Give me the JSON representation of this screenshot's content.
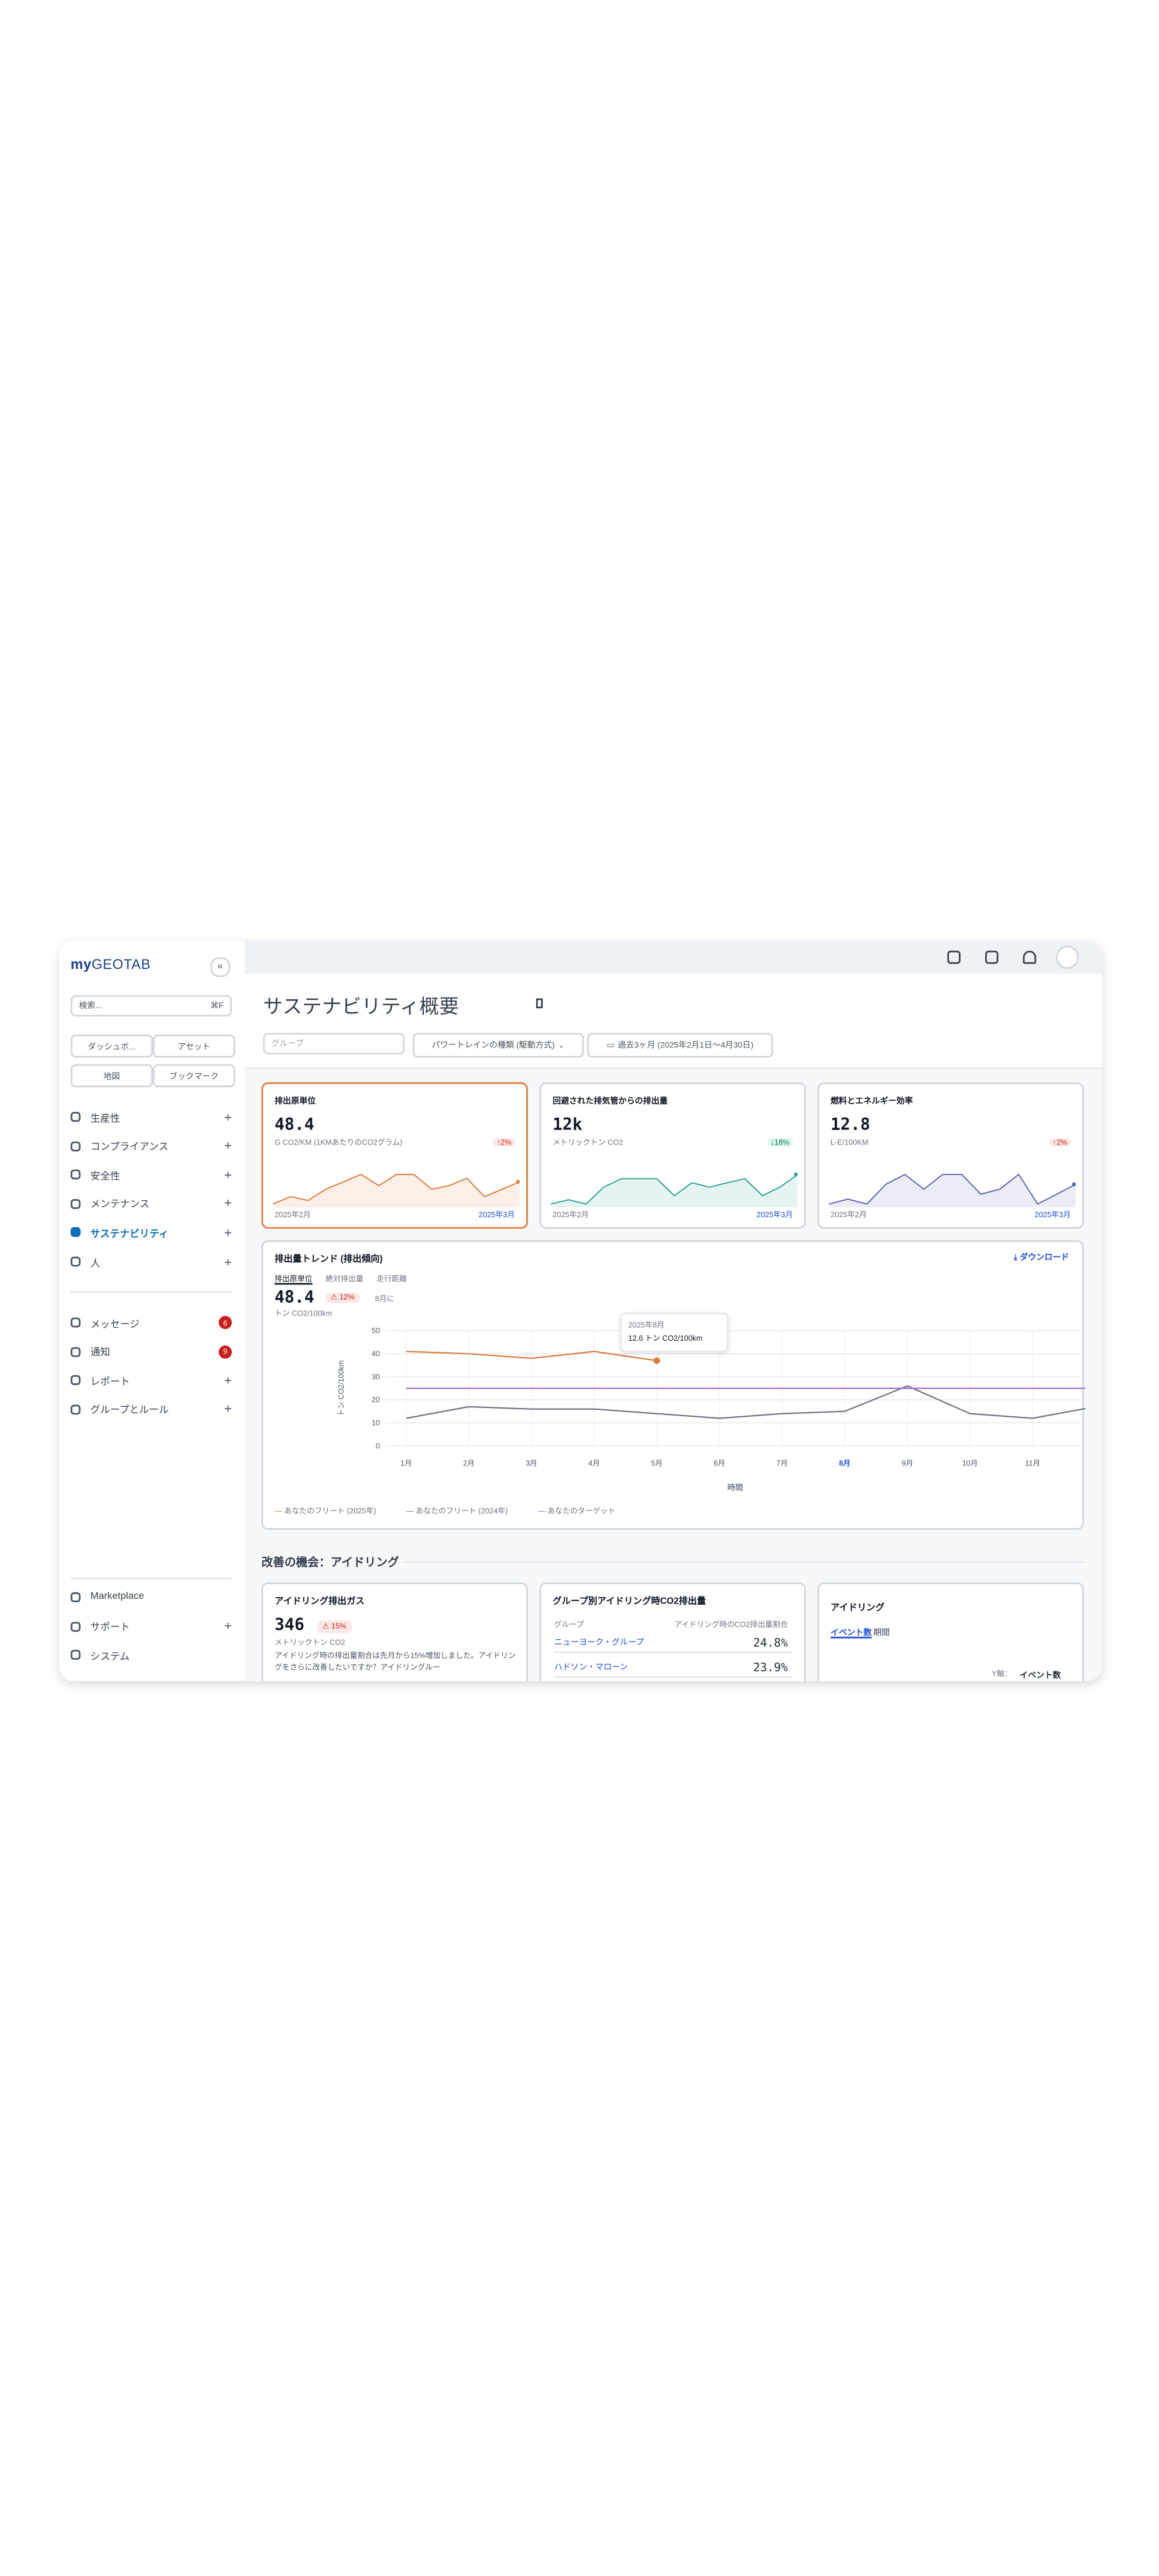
{
  "sidebar": {
    "logo_prefix": "my",
    "logo": "GEOTAB",
    "search": "検索...",
    "shortcut": "⌘F",
    "quick": [
      "ダッシュボ...",
      "アセット",
      "地図",
      "ブックマーク"
    ],
    "nav": [
      {
        "label": "生産性"
      },
      {
        "label": "コンプライアンス"
      },
      {
        "label": "安全性"
      },
      {
        "label": "メンテナンス"
      },
      {
        "label": "サステナビリティ",
        "active": true
      },
      {
        "label": "人"
      }
    ],
    "nav2": [
      {
        "label": "メッセージ",
        "badge": 6
      },
      {
        "label": "通知",
        "badge": 9
      },
      {
        "label": "レポート"
      },
      {
        "label": "グループとルール"
      }
    ],
    "bottom": [
      {
        "label": "Marketplace"
      },
      {
        "label": "サポート",
        "expand": true
      },
      {
        "label": "システム"
      }
    ]
  },
  "header": {
    "title": "サステナビリティ概要",
    "filters": [
      "グループ",
      "パワートレインの種類 (駆動方式)",
      "過去3ヶ月 (2025年2月1日〜4月30日)"
    ]
  },
  "kpis": [
    {
      "title": "排出原単位",
      "value": "48.4",
      "unit": "G CO2/KM (1KMあたりのCO2グラム)",
      "change": "2%",
      "direction": "up",
      "start": "2025年2月",
      "end": "2025年3月",
      "color": "#e07b39",
      "spark": [
        3,
        4,
        3.5,
        5,
        6,
        7,
        5.5,
        7,
        7,
        5,
        5.5,
        6.5,
        4,
        5,
        6
      ]
    },
    {
      "title": "回避された排気管からの排出量",
      "value": "12k",
      "unit": "メトリックトン CO2",
      "change": "18%",
      "direction": "down",
      "start": "2025年2月",
      "end": "2025年3月",
      "color": "#2aa198",
      "spark": [
        3,
        3.5,
        3,
        5,
        6,
        6,
        6,
        4,
        5.5,
        5,
        5.5,
        6,
        4,
        5,
        6.5
      ]
    },
    {
      "title": "燃料とエネルギー効率",
      "value": "12.8",
      "unit": "L-E/100KM",
      "change": "2%",
      "direction": "up",
      "start": "2025年2月",
      "end": "2025年3月",
      "color": "#5b63b7",
      "spark": [
        4,
        4.5,
        4,
        6,
        7,
        5.5,
        7,
        7,
        5,
        5.5,
        7,
        4,
        5,
        6
      ]
    }
  ],
  "trend_chart": {
    "type": "line",
    "title": "排出量トレンド (排出傾向)",
    "download": "ダウンロード",
    "tabs": [
      "排出原単位",
      "絶対排出量",
      "走行距離"
    ],
    "value": "48.4",
    "badge": "12%",
    "badge_note": "8月に",
    "unit": "トン CO2/100km",
    "ylabel": "トン CO2/100km",
    "xlabel": "時間",
    "tooltip": [
      "2025年8月",
      "12.6 トン CO2/100km"
    ],
    "categories": [
      "1月",
      "2月",
      "3月",
      "4月",
      "5月",
      "6月",
      "7月",
      "8月",
      "9月",
      "10月",
      "11月",
      "12月"
    ],
    "highlight": "8月",
    "series": [
      {
        "name": "あなたのフリート (2025年)",
        "color": "#d97b3a",
        "values": [
          41,
          40,
          38,
          41,
          37,
          null,
          null,
          null,
          null,
          null,
          null,
          null
        ]
      },
      {
        "name": "あなたのフリート (2024年)",
        "color": "#6b7280",
        "values": [
          12,
          17,
          16,
          16,
          14,
          12,
          14,
          15,
          26,
          14,
          12,
          17
        ]
      },
      {
        "name": "あなたのターゲット",
        "color": "#9b6bd6",
        "values": [
          25,
          25,
          25,
          25,
          25,
          25,
          25,
          25,
          25,
          25,
          25,
          25
        ]
      }
    ],
    "ylim": [
      0,
      50
    ],
    "yticks": [
      0,
      10,
      20,
      30,
      40,
      50
    ],
    "grid": true
  },
  "section": {
    "title": "改善の機会：アイドリング"
  },
  "idle": {
    "title": "アイドリング排出ガス",
    "value": "346",
    "badge": "15%",
    "unit": "メトリックトン CO2",
    "text": "アイドリング時の排出量割合は先月から15%増加しました。アイドリングをさらに改善したいですか？アイドリングルー"
  },
  "group_table": {
    "title": "グループ別アイドリング時CO2排出量",
    "header": [
      "グループ",
      "アイドリング時のCO2排出量割合"
    ],
    "rows": [
      [
        "ニューヨーク・グループ",
        "24.8%"
      ],
      [
        "ハドソン・マローン",
        "23.9%"
      ]
    ]
  },
  "idling": {
    "title": "アイドリング",
    "tabs": [
      "イベント数",
      "期間"
    ],
    "yaxis": "Y軸：",
    "yaxis_value": "イベント数"
  }
}
